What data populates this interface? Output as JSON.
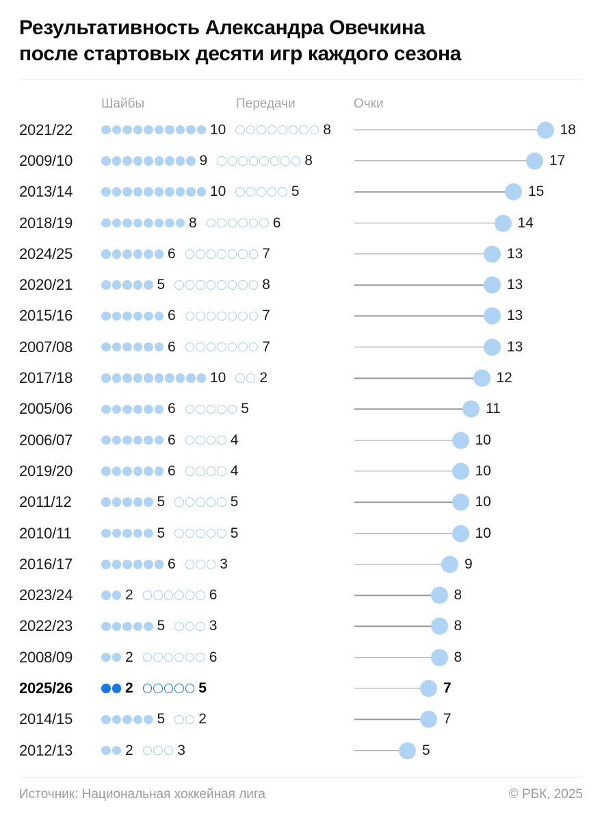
{
  "title": {
    "line1": "Результативность Александра Овечкина",
    "line2": "после стартовых десяти игр каждого сезона"
  },
  "columns": {
    "goals_label": "Шайбы",
    "assists_label": "Передачи",
    "points_label": "Очки"
  },
  "rows": [
    {
      "season": "2021/22",
      "goals": 10,
      "assists": 8,
      "points": 18,
      "highlight": false
    },
    {
      "season": "2009/10",
      "goals": 9,
      "assists": 8,
      "points": 17,
      "highlight": false
    },
    {
      "season": "2013/14",
      "goals": 10,
      "assists": 5,
      "points": 15,
      "highlight": false
    },
    {
      "season": "2018/19",
      "goals": 8,
      "assists": 6,
      "points": 14,
      "highlight": false
    },
    {
      "season": "2024/25",
      "goals": 6,
      "assists": 7,
      "points": 13,
      "highlight": false
    },
    {
      "season": "2020/21",
      "goals": 5,
      "assists": 8,
      "points": 13,
      "highlight": false
    },
    {
      "season": "2015/16",
      "goals": 6,
      "assists": 7,
      "points": 13,
      "highlight": false
    },
    {
      "season": "2007/08",
      "goals": 6,
      "assists": 7,
      "points": 13,
      "highlight": false
    },
    {
      "season": "2017/18",
      "goals": 10,
      "assists": 2,
      "points": 12,
      "highlight": false
    },
    {
      "season": "2005/06",
      "goals": 6,
      "assists": 5,
      "points": 11,
      "highlight": false
    },
    {
      "season": "2006/07",
      "goals": 6,
      "assists": 4,
      "points": 10,
      "highlight": false
    },
    {
      "season": "2019/20",
      "goals": 6,
      "assists": 4,
      "points": 10,
      "highlight": false
    },
    {
      "season": "2011/12",
      "goals": 5,
      "assists": 5,
      "points": 10,
      "highlight": false
    },
    {
      "season": "2010/11",
      "goals": 5,
      "assists": 5,
      "points": 10,
      "highlight": false
    },
    {
      "season": "2016/17",
      "goals": 6,
      "assists": 3,
      "points": 9,
      "highlight": false
    },
    {
      "season": "2023/24",
      "goals": 2,
      "assists": 6,
      "points": 8,
      "highlight": false
    },
    {
      "season": "2022/23",
      "goals": 5,
      "assists": 3,
      "points": 8,
      "highlight": false
    },
    {
      "season": "2008/09",
      "goals": 2,
      "assists": 6,
      "points": 8,
      "highlight": false
    },
    {
      "season": "2025/26",
      "goals": 2,
      "assists": 5,
      "points": 7,
      "highlight": true
    },
    {
      "season": "2014/15",
      "goals": 5,
      "assists": 2,
      "points": 7,
      "highlight": false
    },
    {
      "season": "2012/13",
      "goals": 2,
      "assists": 3,
      "points": 5,
      "highlight": false
    }
  ],
  "footer": {
    "source": "Источник: Национальная хоккейная лига",
    "copyright": "© РБК, 2025"
  },
  "colors": {
    "light_blue_fill": "#afd3f5",
    "accent_blue": "#1777e8",
    "ring_stroke": "#a6cef4",
    "lollipop_line": "#999999",
    "header_gray": "#a5a5a5",
    "footer_gray": "#9c9c9c",
    "divider_gray": "#e7e7e7",
    "text_black": "#0d0d0d"
  },
  "chart_data": {
    "type": "table",
    "title": "Результативность Александра Овечкина после стартовых десяти игр каждого сезона",
    "categories": [
      "2021/22",
      "2009/10",
      "2013/14",
      "2018/19",
      "2024/25",
      "2020/21",
      "2015/16",
      "2007/08",
      "2017/18",
      "2005/06",
      "2006/07",
      "2019/20",
      "2011/12",
      "2010/11",
      "2016/17",
      "2023/24",
      "2022/23",
      "2008/09",
      "2025/26",
      "2014/15",
      "2012/13"
    ],
    "series": [
      {
        "name": "Шайбы",
        "style": "filled-dot-count",
        "values": [
          10,
          9,
          10,
          8,
          6,
          5,
          6,
          6,
          10,
          6,
          6,
          6,
          5,
          5,
          6,
          2,
          5,
          2,
          2,
          5,
          2
        ]
      },
      {
        "name": "Передачи",
        "style": "open-dot-count",
        "values": [
          8,
          8,
          5,
          6,
          7,
          8,
          7,
          7,
          2,
          5,
          4,
          4,
          5,
          5,
          3,
          6,
          3,
          6,
          5,
          2,
          3
        ]
      },
      {
        "name": "Очки",
        "style": "lollipop",
        "values": [
          18,
          17,
          15,
          14,
          13,
          13,
          13,
          13,
          12,
          11,
          10,
          10,
          10,
          10,
          9,
          8,
          8,
          8,
          7,
          7,
          5
        ]
      }
    ],
    "highlighted_category": "2025/26",
    "points_axis_range": [
      0,
      18
    ],
    "sort": "points descending",
    "grid": false,
    "legend_position": "column headers on top"
  }
}
